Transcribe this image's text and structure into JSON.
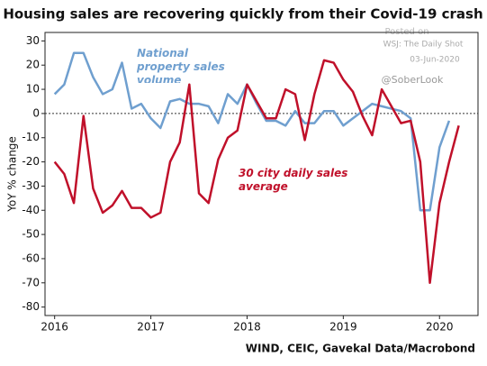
{
  "chart_data": {
    "type": "line",
    "title": "Housing sales are recovering quickly from their Covid-19 crash",
    "y_label": "YoY % change",
    "source": "WIND, CEIC, Gavekal Data/Macrobond",
    "watermark": [
      "Posted on",
      "WSJ: The Daily Shot",
      "03-Jun-2020",
      "@SoberLook"
    ],
    "x": [
      2016.0,
      2016.1,
      2016.2,
      2016.3,
      2016.4,
      2016.5,
      2016.6,
      2016.7,
      2016.8,
      2016.9,
      2017.0,
      2017.1,
      2017.2,
      2017.3,
      2017.4,
      2017.5,
      2017.6,
      2017.7,
      2017.8,
      2017.9,
      2018.0,
      2018.1,
      2018.2,
      2018.3,
      2018.4,
      2018.5,
      2018.6,
      2018.7,
      2018.8,
      2018.9,
      2019.0,
      2019.1,
      2019.2,
      2019.3,
      2019.4,
      2019.5,
      2019.6,
      2019.7,
      2019.8,
      2019.9,
      2020.0,
      2020.1,
      2020.2
    ],
    "xlim": [
      2015.9,
      2020.4
    ],
    "xticks": [
      2016,
      2017,
      2018,
      2019,
      2020
    ],
    "ylim": [
      -83.5,
      33.5
    ],
    "yticks": [
      30,
      20,
      10,
      0,
      -10,
      -20,
      -30,
      -40,
      -50,
      -60,
      -70,
      -80
    ],
    "reference_line": 0,
    "series": [
      {
        "name": "National property sales volume",
        "color": "#6f9fcf",
        "values": [
          8,
          12,
          25,
          25,
          15,
          8,
          10,
          21,
          2,
          4,
          -2,
          -6,
          5,
          6,
          4,
          4,
          3,
          -4,
          8,
          4,
          12,
          4,
          -3,
          -3,
          -5,
          1,
          -4,
          -4,
          1,
          1,
          -5,
          -2,
          1,
          4,
          3,
          2,
          1,
          -2,
          -40,
          -40,
          -14,
          -3,
          null
        ]
      },
      {
        "name": "30 city daily sales average",
        "color": "#c0102a",
        "values": [
          -20,
          -25,
          -37,
          -1,
          -31,
          -41,
          -38,
          -32,
          -39,
          -39,
          -43,
          -41,
          -20,
          -12,
          12,
          -33,
          -37,
          -19,
          -10,
          -7,
          12,
          5,
          -2,
          -2,
          10,
          8,
          -11,
          8,
          22,
          21,
          14,
          9,
          -1,
          -9,
          10,
          3,
          -4,
          -3,
          -20,
          -70,
          -37,
          -20,
          -5
        ]
      }
    ]
  }
}
